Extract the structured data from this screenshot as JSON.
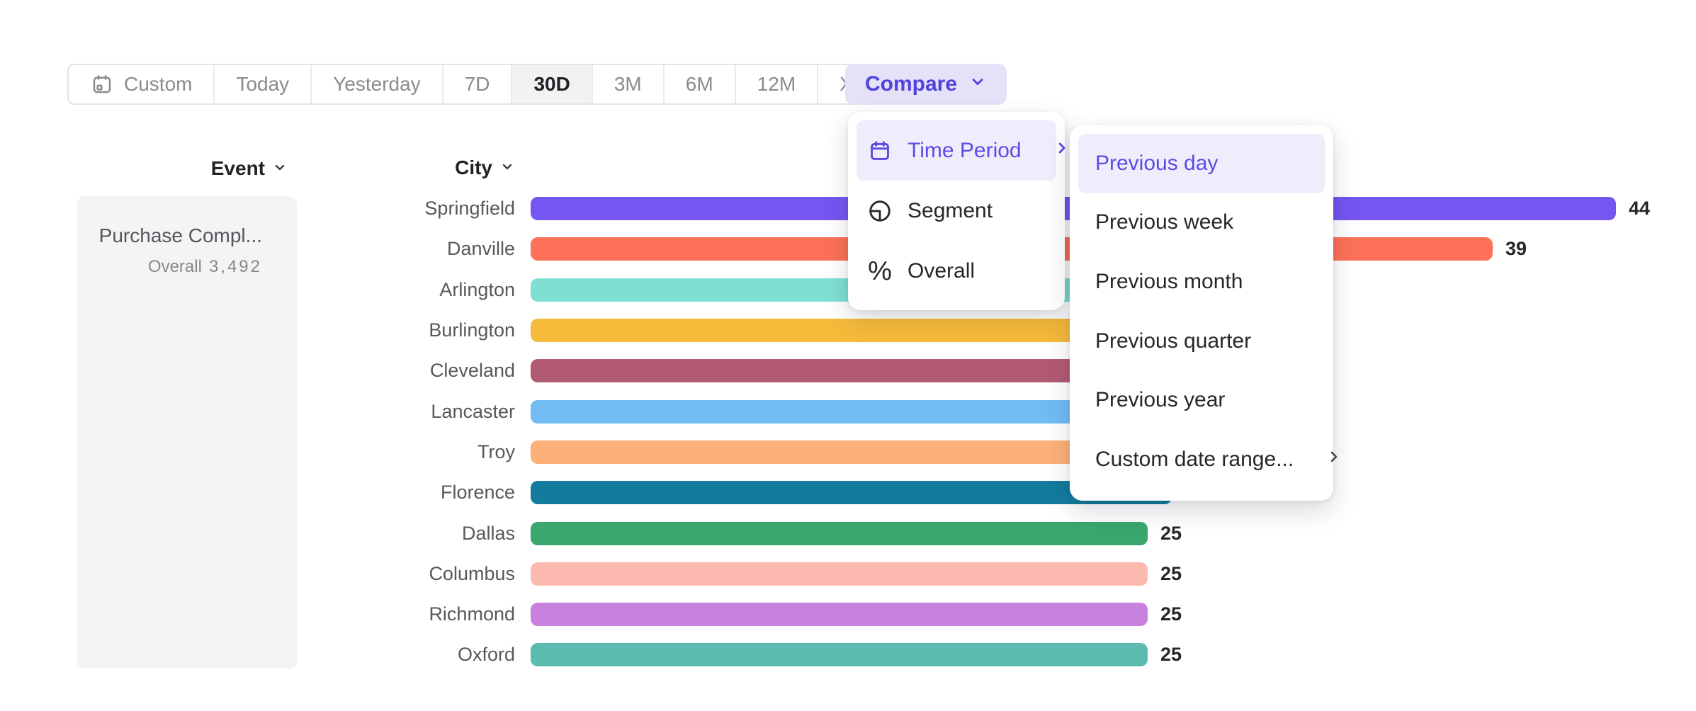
{
  "toolbar": {
    "date_ranges": [
      {
        "label": "Custom",
        "icon": "calendar-icon",
        "active": false
      },
      {
        "label": "Today",
        "active": false
      },
      {
        "label": "Yesterday",
        "active": false
      },
      {
        "label": "7D",
        "active": false
      },
      {
        "label": "30D",
        "active": true
      },
      {
        "label": "3M",
        "active": false
      },
      {
        "label": "6M",
        "active": false
      },
      {
        "label": "12M",
        "active": false
      },
      {
        "label": "XTD",
        "has_chevron": true,
        "active": false
      }
    ],
    "compare_label": "Compare"
  },
  "event_panel": {
    "header": "Event",
    "event_name": "Purchase Compl...",
    "overall_label": "Overall",
    "overall_value": "3,492"
  },
  "chart_data": {
    "type": "bar",
    "orientation": "horizontal",
    "column_header": "City",
    "note_axis": "no axis shown; value labels at bar ends; middle bar ends occluded by open menus",
    "categories": [
      "Springfield",
      "Danville",
      "Arlington",
      "Burlington",
      "Cleveland",
      "Lancaster",
      "Troy",
      "Florence",
      "Dallas",
      "Columbus",
      "Richmond",
      "Oxford"
    ],
    "rows": [
      {
        "city": "Springfield",
        "color": "#7556F0",
        "value": 44,
        "bar_units": 44
      },
      {
        "city": "Danville",
        "color": "#FC7157",
        "value": 39,
        "bar_units": 39
      },
      {
        "city": "Arlington",
        "color": "#7FE0D2",
        "value": null,
        "bar_units": 30
      },
      {
        "city": "Burlington",
        "color": "#F6BB3B",
        "value": null,
        "bar_units": 29
      },
      {
        "city": "Cleveland",
        "color": "#B25A72",
        "value": null,
        "bar_units": 28
      },
      {
        "city": "Lancaster",
        "color": "#70BCF3",
        "value": null,
        "bar_units": 27
      },
      {
        "city": "Troy",
        "color": "#FDB078",
        "value": null,
        "bar_units": 26
      },
      {
        "city": "Florence",
        "color": "#137C9E",
        "value": null,
        "bar_units": 26
      },
      {
        "city": "Dallas",
        "color": "#39A76E",
        "value": 25,
        "bar_units": 25
      },
      {
        "city": "Columbus",
        "color": "#FCB9B0",
        "value": 25,
        "bar_units": 25
      },
      {
        "city": "Richmond",
        "color": "#C981DF",
        "value": 25,
        "bar_units": 25
      },
      {
        "city": "Oxford",
        "color": "#5ABBAE",
        "value": 25,
        "bar_units": 25
      }
    ]
  },
  "compare_menu": {
    "items": [
      {
        "label": "Time Period",
        "icon": "calendar-icon",
        "selected": true,
        "has_submenu": true
      },
      {
        "label": "Segment",
        "icon": "segment-pie-icon",
        "selected": false
      },
      {
        "label": "Overall",
        "icon": "percent-icon",
        "selected": false
      }
    ]
  },
  "time_period_submenu": {
    "items": [
      {
        "label": "Previous day",
        "selected": true
      },
      {
        "label": "Previous week",
        "selected": false
      },
      {
        "label": "Previous month",
        "selected": false
      },
      {
        "label": "Previous quarter",
        "selected": false
      },
      {
        "label": "Previous year",
        "selected": false
      },
      {
        "label": "Custom date range...",
        "selected": false,
        "has_submenu": true
      }
    ]
  },
  "colors": {
    "accent_purple": "#5B4BE3",
    "highlight_lavender": "#EFEDFB",
    "compare_bg": "#E4E1F9",
    "compare_text": "#5043DD",
    "toolbar_text": "#8A8B91",
    "active_segment_bg": "#F2F2F4",
    "dark_text": "#26262B",
    "label_gray": "#57585D",
    "card_bg": "#F4F4F5"
  }
}
